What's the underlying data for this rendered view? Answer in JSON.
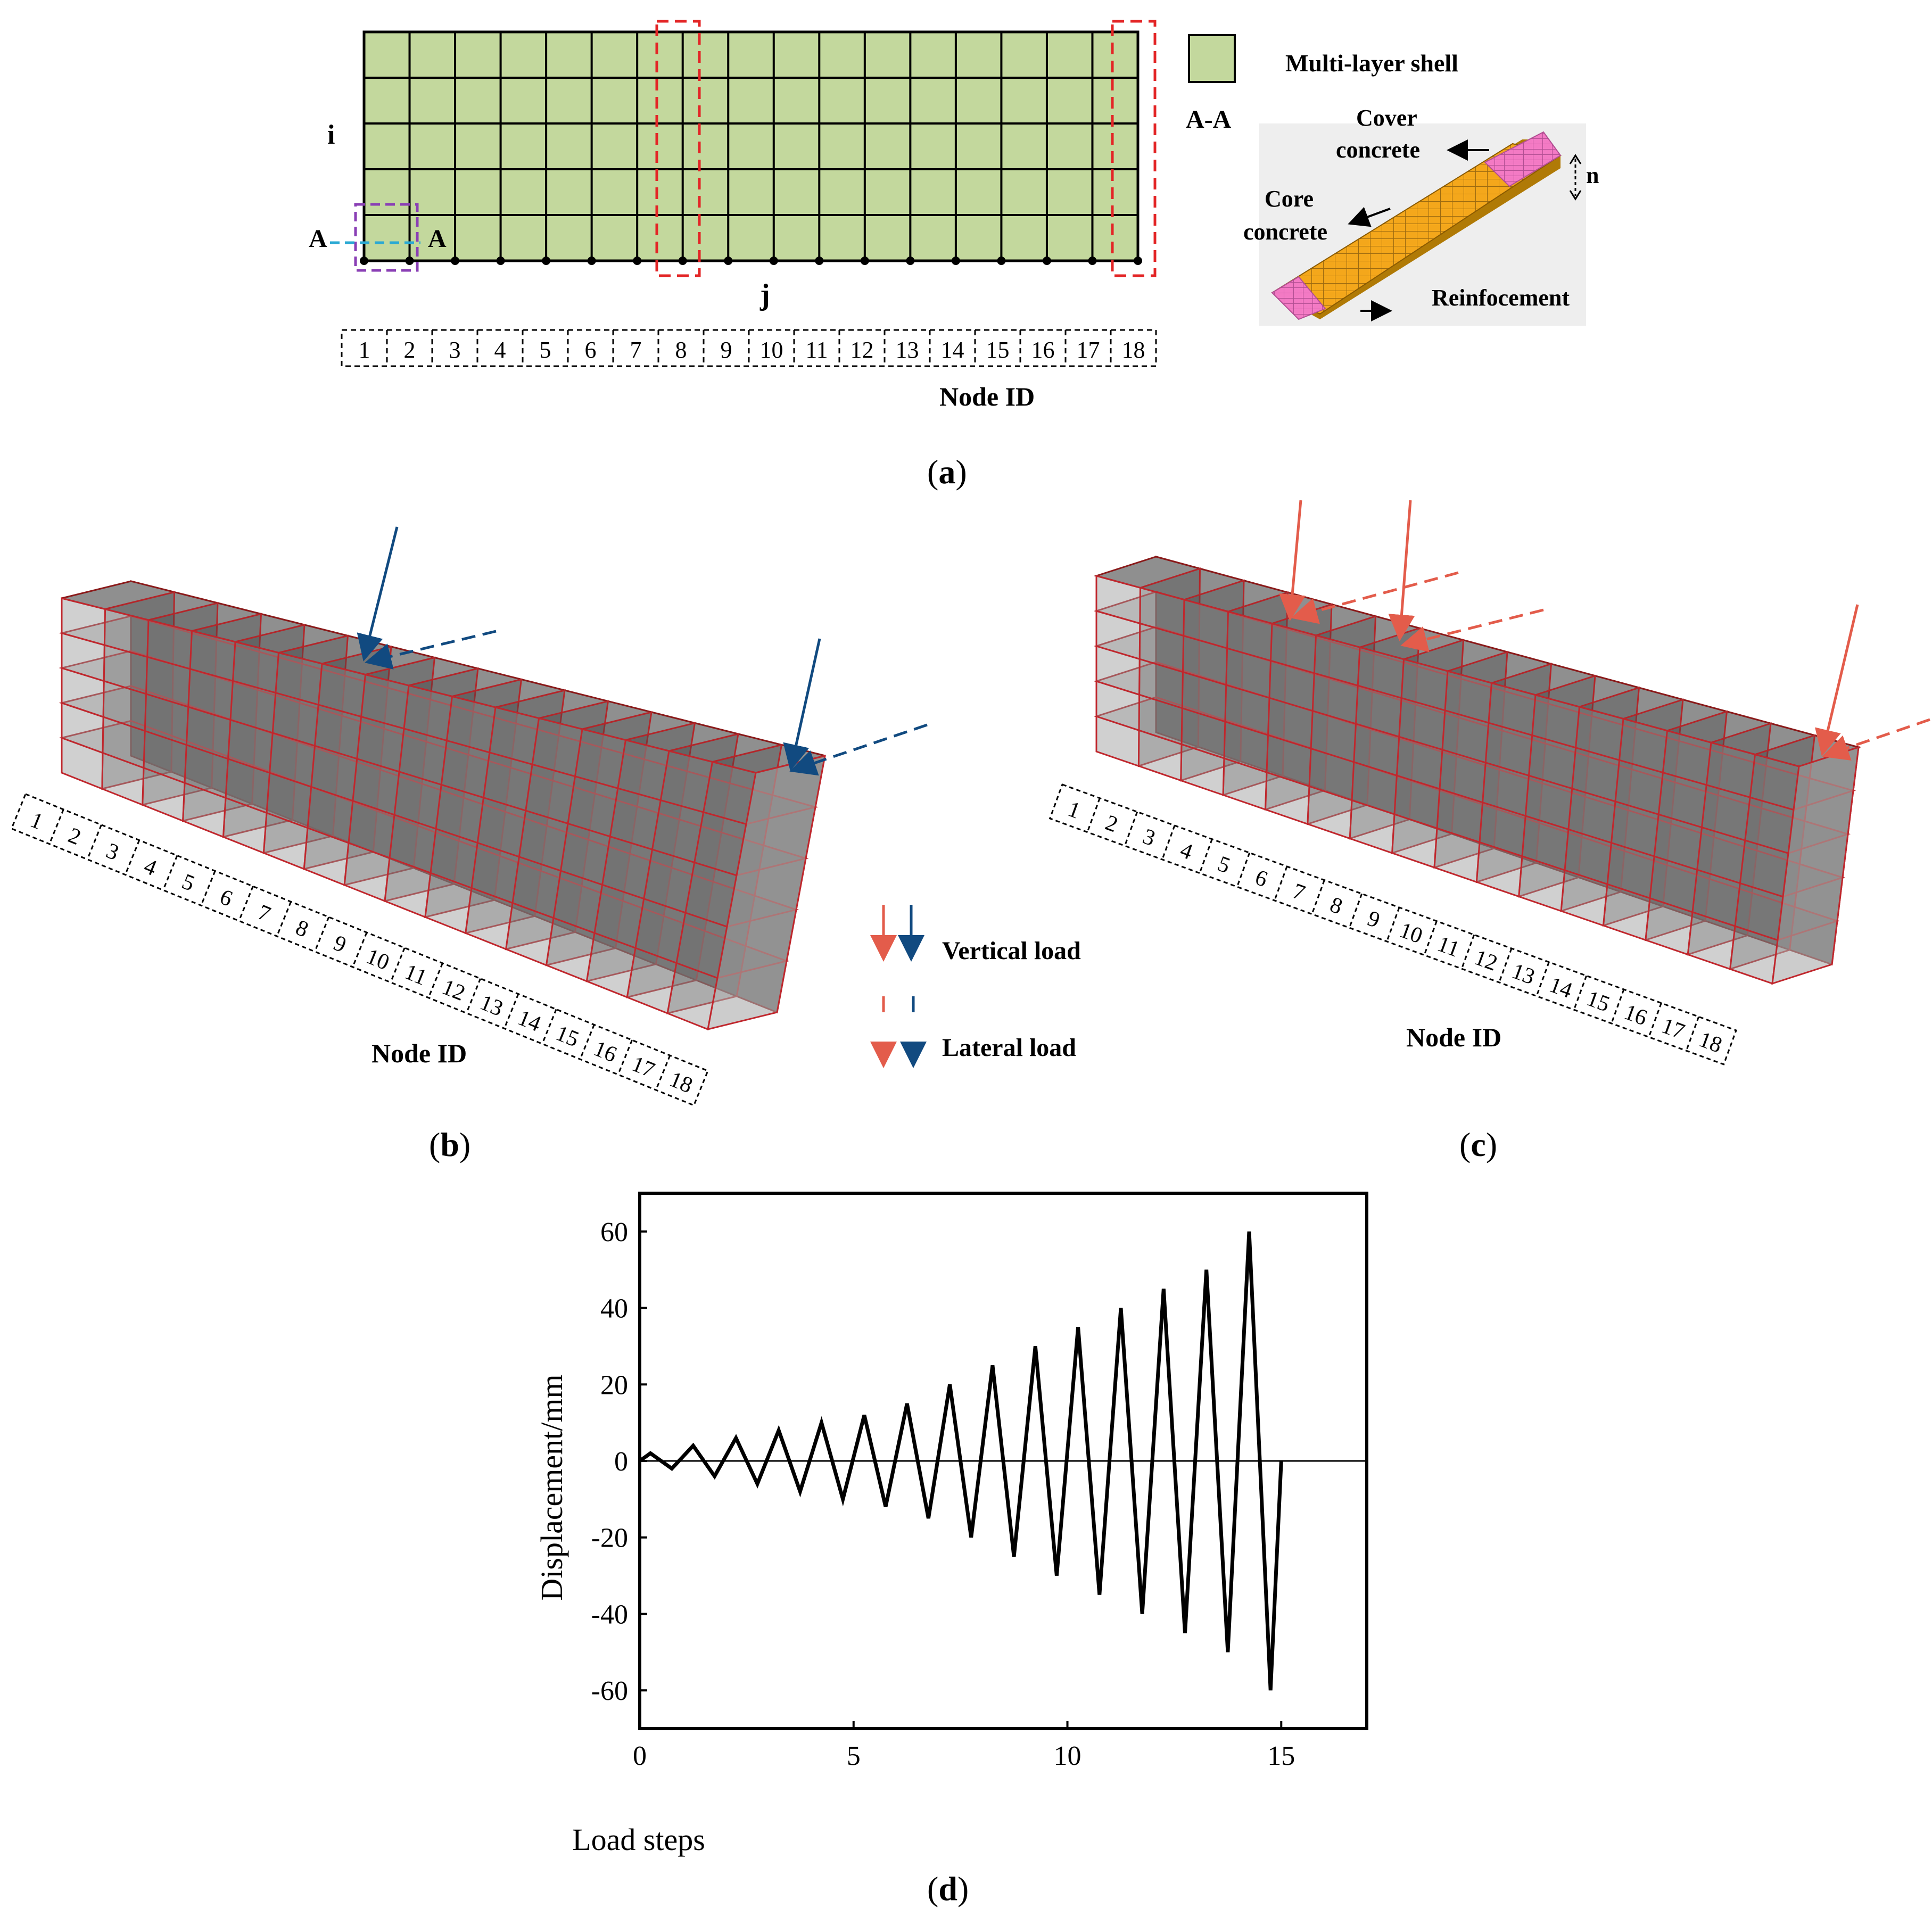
{
  "panel_a": {
    "caption": "a",
    "label_i": "i",
    "label_j": "j",
    "section_left": "A",
    "section_right": "A",
    "legend_label": "Multi-layer shell",
    "section_title": "A-A",
    "cover_label_1": "Cover",
    "cover_label_2": "concrete",
    "core_label_1": "Core",
    "core_label_2": "concrete",
    "reinf_label": "Reinfocement",
    "n_label": "n",
    "node_id_label": "Node ID",
    "nodes": [
      "1",
      "2",
      "3",
      "4",
      "5",
      "6",
      "7",
      "8",
      "9",
      "10",
      "11",
      "12",
      "13",
      "14",
      "15",
      "16",
      "17",
      "18"
    ],
    "colors": {
      "shell": "#c3d89d",
      "highlight_red": "#e32526",
      "highlight_purple": "#8a3fb5",
      "section_line": "#2aa9d3",
      "cover": "#f37ac4",
      "core": "#f4a71b"
    }
  },
  "panel_b": {
    "caption": "b",
    "node_id_label": "Node ID",
    "nodes": [
      "1",
      "2",
      "3",
      "4",
      "5",
      "6",
      "7",
      "8",
      "9",
      "10",
      "11",
      "12",
      "13",
      "14",
      "15",
      "16",
      "17",
      "18"
    ],
    "load_color": "#114a80"
  },
  "panel_c": {
    "caption": "c",
    "node_id_label": "Node ID",
    "nodes": [
      "1",
      "2",
      "3",
      "4",
      "5",
      "6",
      "7",
      "8",
      "9",
      "10",
      "11",
      "12",
      "13",
      "14",
      "15",
      "16",
      "17",
      "18"
    ],
    "load_color": "#e35c4b"
  },
  "legend": {
    "vertical_load": "Vertical load",
    "lateral_load": "Lateral load"
  },
  "panel_d": {
    "caption": "d"
  },
  "chart_data": {
    "type": "line",
    "title": "",
    "xlabel": "Load steps",
    "ylabel": "Displacement/mm",
    "xlim": [
      0,
      17
    ],
    "ylim": [
      -70,
      70
    ],
    "xticks": [
      0,
      5,
      10,
      15
    ],
    "yticks": [
      60,
      40,
      20,
      0,
      -20,
      -40,
      -60
    ],
    "baseline": 0,
    "series": [
      {
        "name": "Displacement",
        "x": [
          0,
          0.25,
          0.75,
          1.25,
          1.75,
          2.25,
          2.75,
          3.25,
          3.75,
          4.25,
          4.75,
          5.25,
          5.75,
          6.25,
          6.75,
          7.25,
          7.75,
          8.25,
          8.75,
          9.25,
          9.75,
          10.25,
          10.75,
          11.25,
          11.75,
          12.25,
          12.75,
          13.25,
          13.75,
          14.25,
          14.75,
          15
        ],
        "y": [
          0,
          2,
          -2,
          4,
          -4,
          6,
          -6,
          8,
          -8,
          10,
          -10,
          12,
          -12,
          15,
          -15,
          20,
          -20,
          25,
          -25,
          30,
          -30,
          35,
          -35,
          40,
          -40,
          45,
          -45,
          50,
          -50,
          60,
          -60,
          0
        ]
      }
    ]
  }
}
